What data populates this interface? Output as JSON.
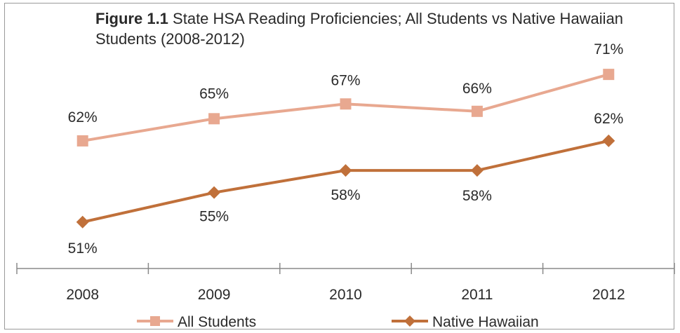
{
  "chart_data": {
    "type": "line",
    "title_prefix": "Figure 1.1",
    "title": "State HSA Reading Proficiencies; All Students vs Native Hawaiian Students (2008-2012)",
    "xlabel": "",
    "ylabel": "",
    "categories": [
      "2008",
      "2009",
      "2010",
      "2011",
      "2012"
    ],
    "ylim": [
      45,
      75
    ],
    "grid": false,
    "legend_position": "bottom",
    "series": [
      {
        "name": "All Students",
        "values": [
          62,
          65,
          67,
          66,
          71
        ],
        "labels": [
          "62%",
          "65%",
          "67%",
          "66%",
          "71%"
        ],
        "color": "#E8A890",
        "marker": "square"
      },
      {
        "name": "Native Hawaiian",
        "values": [
          51,
          55,
          58,
          58,
          62
        ],
        "labels": [
          "51%",
          "55%",
          "58%",
          "58%",
          "62%"
        ],
        "color": "#C0703A",
        "marker": "diamond"
      }
    ]
  }
}
